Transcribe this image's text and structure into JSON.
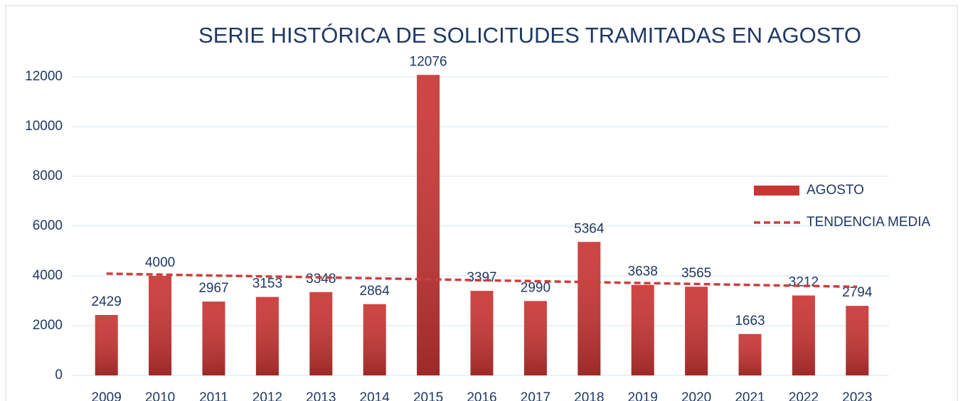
{
  "chart_data": {
    "type": "bar",
    "title": "SERIE HISTÓRICA DE SOLICITUDES TRAMITADAS EN AGOSTO",
    "categories": [
      "2009",
      "2010",
      "2011",
      "2012",
      "2013",
      "2014",
      "2015",
      "2016",
      "2017",
      "2018",
      "2019",
      "2020",
      "2021",
      "2022",
      "2023"
    ],
    "series": [
      {
        "name": "AGOSTO",
        "type": "bar",
        "color": "#c93533",
        "values": [
          2429,
          4000,
          2967,
          3153,
          3348,
          2864,
          12076,
          3397,
          2990,
          5364,
          3638,
          3565,
          1663,
          3212,
          2794
        ]
      },
      {
        "name": "TENDENCIA MEDIA",
        "type": "line",
        "color": "#c9403d",
        "values": [
          4090,
          4052,
          4014,
          3976,
          3939,
          3901,
          3863,
          3825,
          3787,
          3749,
          3711,
          3674,
          3636,
          3598,
          3560
        ]
      }
    ],
    "ylim": [
      0,
      12000
    ],
    "yticks": [
      0,
      2000,
      4000,
      6000,
      8000,
      10000,
      12000
    ],
    "grid": true,
    "legend": "right"
  }
}
